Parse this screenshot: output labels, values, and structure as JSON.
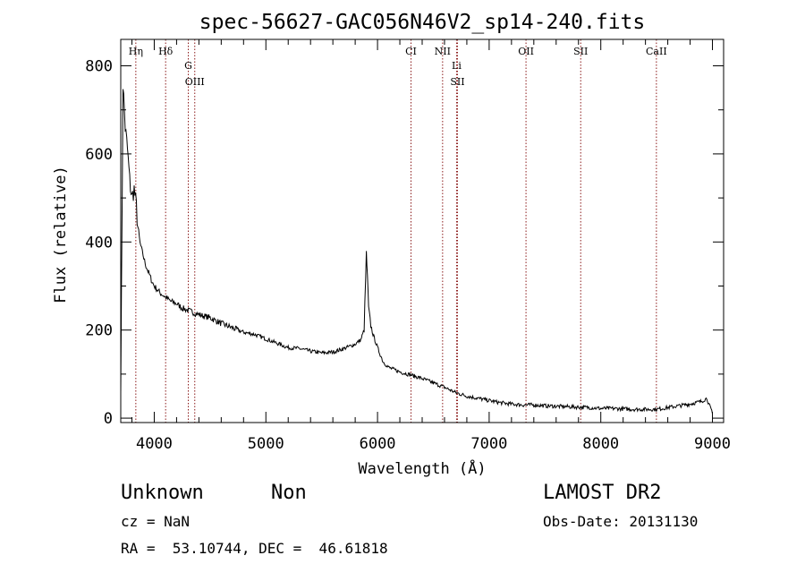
{
  "chart_data": {
    "type": "line",
    "title": "spec-56627-GAC056N46V2_sp14-240.fits",
    "xlabel": "Wavelength (Å)",
    "ylabel": "Flux (relative)",
    "xlim": [
      3700,
      9100
    ],
    "ylim": [
      -10,
      860
    ],
    "x_ticks": [
      4000,
      5000,
      6000,
      7000,
      8000,
      9000
    ],
    "y_ticks": [
      0,
      200,
      400,
      600,
      800
    ],
    "grid": false,
    "series": [
      {
        "x": [
          3700,
          3720,
          3740,
          3760,
          3780,
          3800,
          3820,
          3840,
          3860,
          3880,
          3900,
          3920,
          3950,
          3980,
          4000,
          4050,
          4100,
          4150,
          4200,
          4250,
          4300,
          4350,
          4400,
          4500,
          4600,
          4700,
          4800,
          4900,
          5000,
          5100,
          5200,
          5300,
          5400,
          5500,
          5600,
          5700,
          5800,
          5850,
          5880,
          5900,
          5910,
          5920,
          5940,
          5960,
          6000,
          6050,
          6100,
          6200,
          6300,
          6400,
          6500,
          6600,
          6700,
          6800,
          6900,
          7000,
          7100,
          7200,
          7300,
          7400,
          7500,
          7600,
          7700,
          7800,
          7900,
          8000,
          8100,
          8200,
          8300,
          8400,
          8500,
          8600,
          8700,
          8800,
          8900,
          8950,
          9000
        ],
        "y": [
          60,
          760,
          660,
          610,
          540,
          500,
          520,
          480,
          410,
          390,
          370,
          350,
          330,
          310,
          300,
          285,
          275,
          265,
          260,
          250,
          245,
          240,
          235,
          228,
          215,
          205,
          195,
          190,
          180,
          170,
          160,
          158,
          152,
          148,
          150,
          158,
          168,
          178,
          200,
          375,
          320,
          250,
          210,
          190,
          160,
          128,
          115,
          105,
          98,
          90,
          80,
          70,
          58,
          50,
          45,
          40,
          35,
          32,
          30,
          30,
          28,
          27,
          26,
          25,
          24,
          22,
          22,
          21,
          20,
          20,
          20,
          24,
          28,
          32,
          38,
          45,
          10
        ]
      }
    ],
    "annotations": [
      {
        "label": "Hη",
        "x": 3835
      },
      {
        "label": "Hδ",
        "x": 4102
      },
      {
        "label": "OIII",
        "x": 4363
      },
      {
        "label": "G",
        "x": 4305
      },
      {
        "label": "CI",
        "x": 6300
      },
      {
        "label": "Li",
        "x": 6708
      },
      {
        "label": "NII",
        "x": 6583
      },
      {
        "label": "SII",
        "x": 6716
      },
      {
        "label": "OII",
        "x": 7330
      },
      {
        "label": "SII",
        "x": 7820
      },
      {
        "label": "CaII",
        "x": 8498
      }
    ]
  },
  "info": {
    "class_left": "Unknown",
    "class_right": "Non",
    "survey": "LAMOST DR2",
    "cz": "cz = NaN",
    "obs_date": "Obs-Date: 20131130",
    "coords": "RA =  53.10744, DEC =  46.61818"
  }
}
